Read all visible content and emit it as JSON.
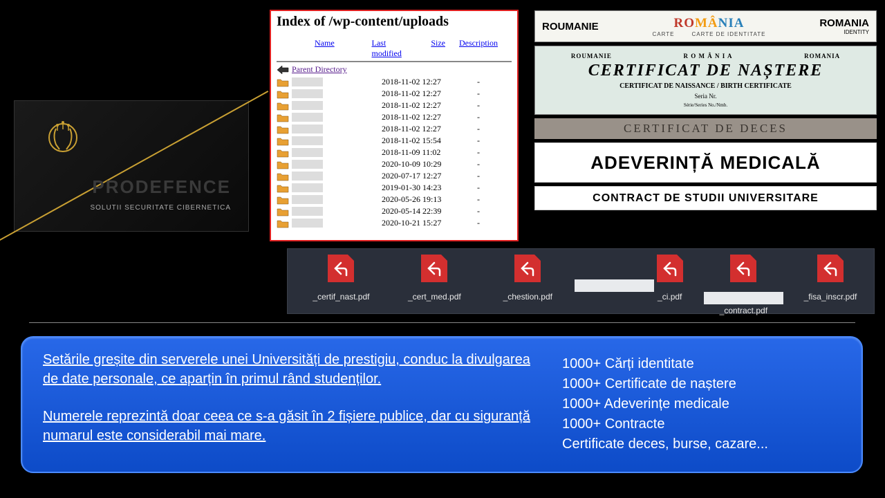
{
  "prodefence": {
    "title": "PRODEFENCE",
    "subtitle": "SOLUTII SECURITATE CIBERNETICA",
    "logo_color": "#c9a033"
  },
  "dir": {
    "heading": "Index of /wp-content/uploads",
    "headers": {
      "name": "Name",
      "modified": "Last modified",
      "size": "Size",
      "desc": "Description"
    },
    "parent": "Parent Directory",
    "rows": [
      {
        "date": "2018-11-02 12:27"
      },
      {
        "date": "2018-11-02 12:27"
      },
      {
        "date": "2018-11-02 12:27"
      },
      {
        "date": "2018-11-02 12:27"
      },
      {
        "date": "2018-11-02 12:27"
      },
      {
        "date": "2018-11-02 15:54"
      },
      {
        "date": "2018-11-09 11:02"
      },
      {
        "date": "2020-10-09 10:29"
      },
      {
        "date": "2020-07-17 12:27"
      },
      {
        "date": "2019-01-30 14:23"
      },
      {
        "date": "2020-05-26 19:13"
      },
      {
        "date": "2020-05-14 22:39"
      },
      {
        "date": "2020-10-21 15:27"
      }
    ]
  },
  "docs": {
    "id": {
      "left": "ROUMANIE",
      "flag": "ROMÂNIA",
      "carte": "CARTE",
      "carte_sub": "CARTE DE IDENTITATE",
      "right": "ROMANIA",
      "right_sub": "IDENTITY"
    },
    "birth": {
      "roumanie": "ROUMANIE",
      "romania": "R O M Â N I A",
      "romania_en": "ROMANIA",
      "main": "CERTIFICAT  DE  NAȘTERE",
      "sub1": "CERTIFICAT DE NAISSANCE / BIRTH CERTIFICATE",
      "sub2": "Seria          Nr.",
      "sub3": "Série/Series        No./Nmb."
    },
    "death": "CERTIFICAT  DE  DECES",
    "medical": "ADEVERINȚĂ MEDICALĂ",
    "contract": "CONTRACT DE STUDII UNIVERSITARE"
  },
  "pdfs": {
    "items": [
      "_certif_nast.pdf",
      "_cert_med.pdf",
      "_chestion.pdf",
      "_ci.pdf",
      "_contract.pdf",
      "_fisa_inscr.pdf"
    ]
  },
  "blue": {
    "para1": "Setările greșite din serverele unei Universități de prestigiu, conduc la divulgarea de date personale, ce aparțin în primul rând studenților.",
    "para2": "Numerele reprezintă doar ceea ce s-a găsit în 2 fișiere publice, dar cu siguranță numarul este considerabil mai mare.",
    "stats": [
      "1000+ Cărți identitate",
      "1000+ Certificate de naștere",
      "1000+ Adeverințe medicale",
      "1000+ Contracte",
      "Certificate deces, burse, cazare..."
    ]
  }
}
